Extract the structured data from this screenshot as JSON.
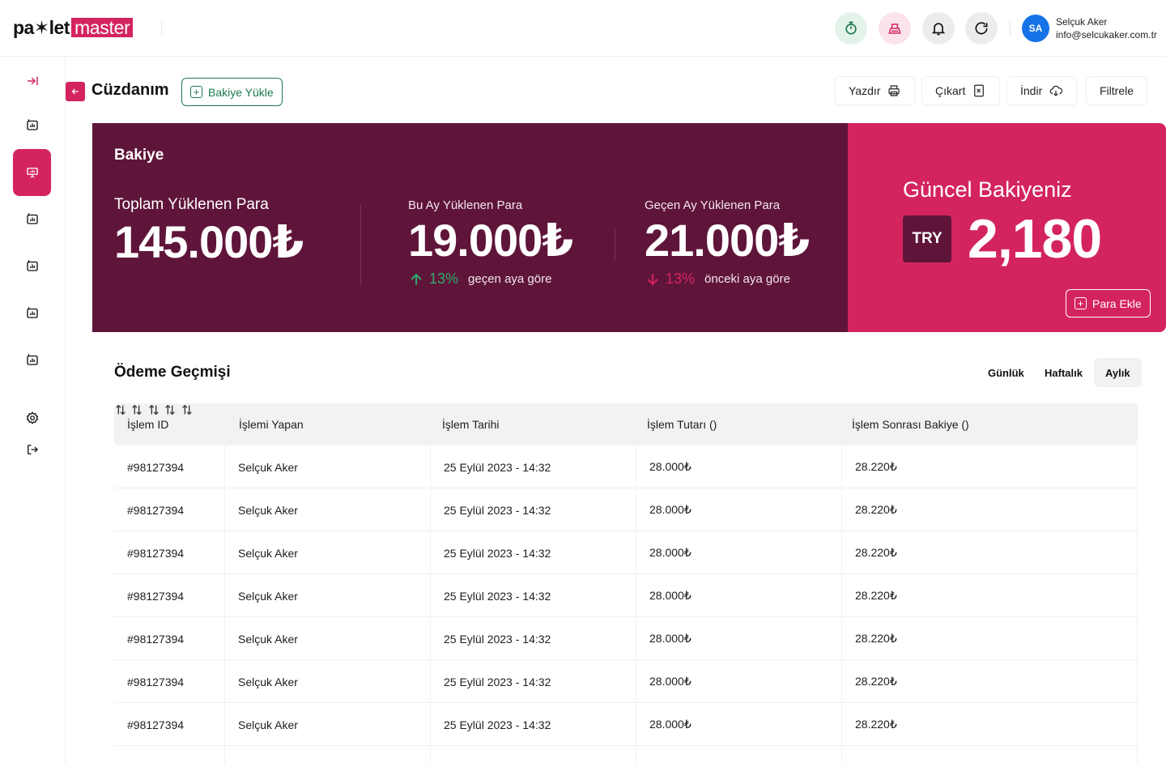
{
  "brand": {
    "part1": "pa✶let",
    "part2": "master"
  },
  "user": {
    "initials": "SA",
    "name": "Selçuk Aker",
    "email": "info@selcukaker.com.tr"
  },
  "page": {
    "title": "Cüzdanım",
    "load_balance_label": "Bakiye Yükle"
  },
  "actions": {
    "print": "Yazdır",
    "export": "Çıkart",
    "download": "İndir",
    "filter": "Filtrele"
  },
  "balance": {
    "title": "Bakiye",
    "total": {
      "label": "Toplam Yüklenen Para",
      "value": "145.000₺"
    },
    "this_month": {
      "label": "Bu Ay Yüklenen Para",
      "value": "19.000₺",
      "change": "13%",
      "compare": "geçen aya göre"
    },
    "last_month": {
      "label": "Geçen Ay Yüklenen Para",
      "value": "21.000₺",
      "change": "13%",
      "compare": "önceki aya göre"
    },
    "current": {
      "label": "Güncel Bakiyeniz",
      "currency": "TRY",
      "value": "2,180",
      "add_label": "Para Ekle"
    }
  },
  "history": {
    "title": "Ödeme Geçmişi",
    "periods": {
      "daily": "Günlük",
      "weekly": "Haftalık",
      "monthly": "Aylık"
    },
    "columns": {
      "id": "İşlem ID",
      "user": "İşlemi Yapan",
      "date": "İşlem Tarihi",
      "amount": "İşlem Tutarı ()",
      "after": "İşlem Sonrası Bakiye ()"
    },
    "rows": [
      {
        "id": "#98127394",
        "user": "Selçuk Aker",
        "date": "25 Eylül 2023 - 14:32",
        "amount": "28.000₺",
        "after": "28.220₺"
      },
      {
        "id": "#98127394",
        "user": "Selçuk Aker",
        "date": "25 Eylül 2023 - 14:32",
        "amount": "28.000₺",
        "after": "28.220₺"
      },
      {
        "id": "#98127394",
        "user": "Selçuk Aker",
        "date": "25 Eylül 2023 - 14:32",
        "amount": "28.000₺",
        "after": "28.220₺"
      },
      {
        "id": "#98127394",
        "user": "Selçuk Aker",
        "date": "25 Eylül 2023 - 14:32",
        "amount": "28.000₺",
        "after": "28.220₺"
      },
      {
        "id": "#98127394",
        "user": "Selçuk Aker",
        "date": "25 Eylül 2023 - 14:32",
        "amount": "28.000₺",
        "after": "28.220₺"
      },
      {
        "id": "#98127394",
        "user": "Selçuk Aker",
        "date": "25 Eylül 2023 - 14:32",
        "amount": "28.000₺",
        "after": "28.220₺"
      },
      {
        "id": "#98127394",
        "user": "Selçuk Aker",
        "date": "25 Eylül 2023 - 14:32",
        "amount": "28.000₺",
        "after": "28.220₺"
      }
    ]
  },
  "colors": {
    "brand": "#d4245e",
    "dark": "#5f1539",
    "up": "#2ea86a",
    "green_btn": "#1d7a4c"
  }
}
